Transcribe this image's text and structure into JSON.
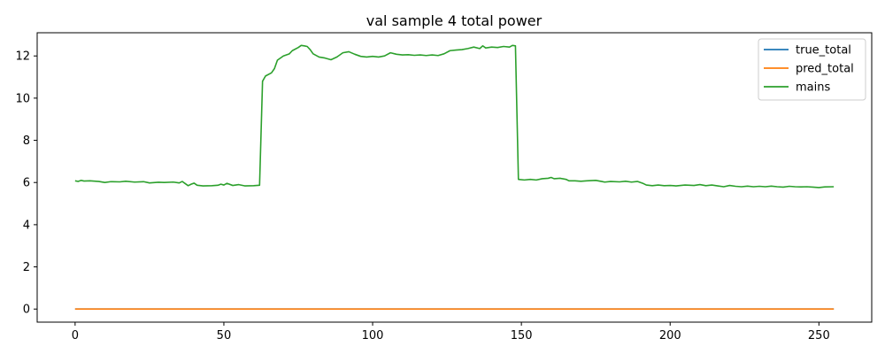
{
  "chart_data": {
    "type": "line",
    "title": "val sample 4 total power",
    "xlabel": "",
    "ylabel": "",
    "xlim": [
      -12.75,
      267.75
    ],
    "ylim": [
      -0.62,
      13.1
    ],
    "xticks": [
      0,
      50,
      100,
      150,
      200,
      250
    ],
    "yticks": [
      0,
      2,
      4,
      6,
      8,
      10,
      12
    ],
    "grid": false,
    "legend_position": "top-right",
    "colors": {
      "true_total": "#1f77b4",
      "pred_total": "#ff7f0e",
      "mains": "#2ca02c"
    },
    "series": [
      {
        "name": "true_total",
        "x_range": [
          0,
          255
        ],
        "points": [
          [
            0,
            0.0
          ],
          [
            255,
            0.0
          ]
        ]
      },
      {
        "name": "pred_total",
        "x_range": [
          0,
          255
        ],
        "points": [
          [
            0,
            0.0
          ],
          [
            255,
            0.0
          ]
        ]
      },
      {
        "name": "mains",
        "x_range": [
          0,
          255
        ],
        "points": [
          [
            0,
            6.08
          ],
          [
            1,
            6.05
          ],
          [
            2,
            6.1
          ],
          [
            3,
            6.07
          ],
          [
            5,
            6.08
          ],
          [
            8,
            6.05
          ],
          [
            10,
            6.0
          ],
          [
            12,
            6.04
          ],
          [
            15,
            6.03
          ],
          [
            17,
            6.06
          ],
          [
            20,
            6.02
          ],
          [
            23,
            6.04
          ],
          [
            25,
            5.98
          ],
          [
            28,
            6.01
          ],
          [
            30,
            6.0
          ],
          [
            33,
            6.02
          ],
          [
            35,
            5.98
          ],
          [
            36,
            6.05
          ],
          [
            37,
            5.95
          ],
          [
            38,
            5.85
          ],
          [
            39,
            5.92
          ],
          [
            40,
            5.97
          ],
          [
            41,
            5.87
          ],
          [
            43,
            5.84
          ],
          [
            46,
            5.85
          ],
          [
            48,
            5.87
          ],
          [
            49,
            5.92
          ],
          [
            50,
            5.88
          ],
          [
            51,
            5.96
          ],
          [
            53,
            5.86
          ],
          [
            55,
            5.9
          ],
          [
            57,
            5.84
          ],
          [
            60,
            5.85
          ],
          [
            62,
            5.87
          ],
          [
            63,
            10.8
          ],
          [
            64,
            11.05
          ],
          [
            66,
            11.2
          ],
          [
            67,
            11.4
          ],
          [
            68,
            11.8
          ],
          [
            70,
            12.0
          ],
          [
            72,
            12.1
          ],
          [
            73,
            12.25
          ],
          [
            75,
            12.4
          ],
          [
            76,
            12.5
          ],
          [
            77,
            12.48
          ],
          [
            78,
            12.45
          ],
          [
            79,
            12.3
          ],
          [
            80,
            12.1
          ],
          [
            82,
            11.95
          ],
          [
            84,
            11.9
          ],
          [
            86,
            11.82
          ],
          [
            88,
            11.95
          ],
          [
            90,
            12.15
          ],
          [
            92,
            12.2
          ],
          [
            94,
            12.08
          ],
          [
            96,
            11.98
          ],
          [
            98,
            11.95
          ],
          [
            100,
            11.98
          ],
          [
            102,
            11.95
          ],
          [
            104,
            12.0
          ],
          [
            106,
            12.15
          ],
          [
            108,
            12.08
          ],
          [
            110,
            12.05
          ],
          [
            112,
            12.06
          ],
          [
            114,
            12.03
          ],
          [
            116,
            12.05
          ],
          [
            118,
            12.02
          ],
          [
            120,
            12.05
          ],
          [
            122,
            12.02
          ],
          [
            124,
            12.1
          ],
          [
            126,
            12.25
          ],
          [
            128,
            12.28
          ],
          [
            130,
            12.3
          ],
          [
            132,
            12.35
          ],
          [
            134,
            12.42
          ],
          [
            136,
            12.35
          ],
          [
            137,
            12.48
          ],
          [
            138,
            12.38
          ],
          [
            140,
            12.42
          ],
          [
            142,
            12.4
          ],
          [
            144,
            12.45
          ],
          [
            146,
            12.42
          ],
          [
            147,
            12.5
          ],
          [
            148,
            12.48
          ],
          [
            149,
            6.15
          ],
          [
            151,
            6.12
          ],
          [
            153,
            6.15
          ],
          [
            155,
            6.12
          ],
          [
            157,
            6.18
          ],
          [
            159,
            6.2
          ],
          [
            160,
            6.24
          ],
          [
            161,
            6.18
          ],
          [
            163,
            6.2
          ],
          [
            165,
            6.15
          ],
          [
            166,
            6.08
          ],
          [
            168,
            6.08
          ],
          [
            170,
            6.06
          ],
          [
            172,
            6.08
          ],
          [
            175,
            6.1
          ],
          [
            177,
            6.05
          ],
          [
            178,
            6.02
          ],
          [
            180,
            6.05
          ],
          [
            183,
            6.03
          ],
          [
            185,
            6.06
          ],
          [
            187,
            6.02
          ],
          [
            189,
            6.05
          ],
          [
            191,
            5.95
          ],
          [
            192,
            5.88
          ],
          [
            194,
            5.85
          ],
          [
            196,
            5.88
          ],
          [
            198,
            5.85
          ],
          [
            200,
            5.86
          ],
          [
            202,
            5.84
          ],
          [
            205,
            5.88
          ],
          [
            208,
            5.86
          ],
          [
            210,
            5.9
          ],
          [
            212,
            5.85
          ],
          [
            214,
            5.88
          ],
          [
            216,
            5.84
          ],
          [
            218,
            5.8
          ],
          [
            220,
            5.86
          ],
          [
            222,
            5.82
          ],
          [
            224,
            5.8
          ],
          [
            226,
            5.83
          ],
          [
            228,
            5.8
          ],
          [
            230,
            5.82
          ],
          [
            232,
            5.8
          ],
          [
            234,
            5.83
          ],
          [
            236,
            5.8
          ],
          [
            238,
            5.78
          ],
          [
            240,
            5.82
          ],
          [
            242,
            5.8
          ],
          [
            244,
            5.79
          ],
          [
            246,
            5.8
          ],
          [
            248,
            5.78
          ],
          [
            250,
            5.76
          ],
          [
            252,
            5.79
          ],
          [
            255,
            5.8
          ]
        ]
      }
    ]
  }
}
